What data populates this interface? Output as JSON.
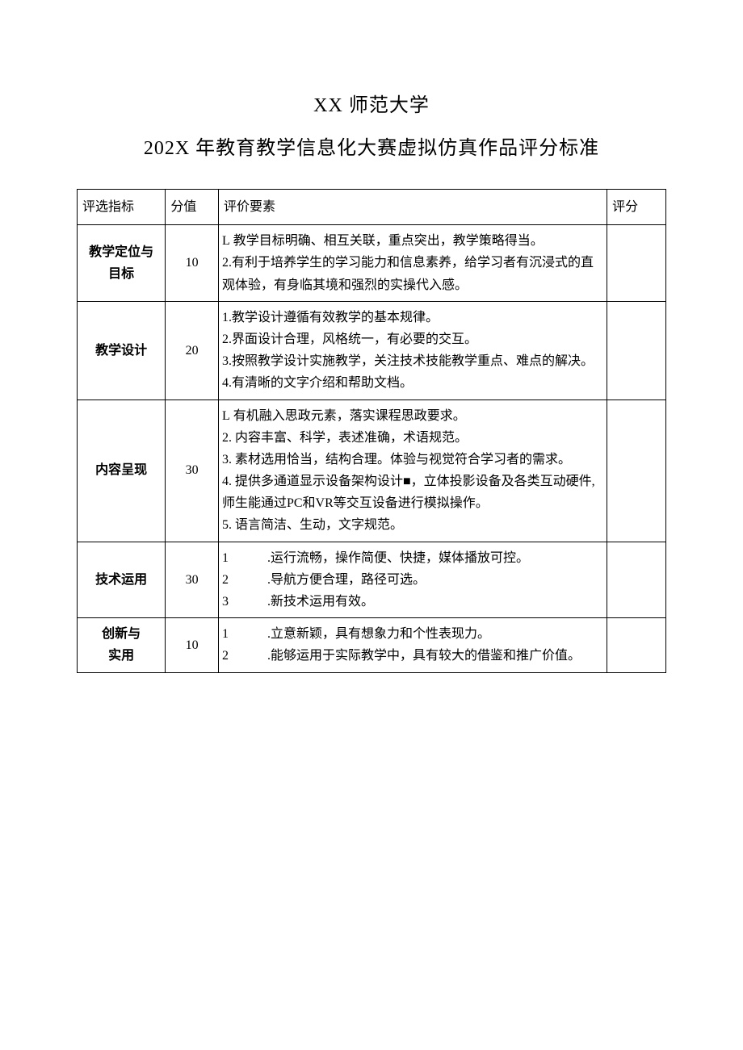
{
  "header": {
    "line1": "XX 师范大学",
    "line2": "202X 年教育教学信息化大赛虚拟仿真作品评分标准"
  },
  "table": {
    "columns": [
      "评选指标",
      "分值",
      "评价要素",
      "评分"
    ],
    "rows": [
      {
        "indicator": "教学定位与目标",
        "score": "10",
        "criteria_lines": [
          {
            "num": "L",
            "gap": false,
            "text": " 教学目标明确、相互关联，重点突出，教学策略得当。"
          },
          {
            "num": "2.",
            "gap": false,
            "text": "有利于培养学生的学习能力和信息素养，给学习者有沉浸式的直观体验，有身临其境和强烈的实操代入感。"
          }
        ],
        "rating": ""
      },
      {
        "indicator": "教学设计",
        "score": "20",
        "criteria_lines": [
          {
            "num": "1.",
            "gap": false,
            "text": "教学设计遵循有效教学的基本规律。"
          },
          {
            "num": "2.",
            "gap": false,
            "text": "界面设计合理，风格统一，有必要的交互。"
          },
          {
            "num": "3.",
            "gap": false,
            "text": "按照教学设计实施教学，关注技术技能教学重点、难点的解决。"
          },
          {
            "num": "4.",
            "gap": false,
            "text": "有清晰的文字介绍和帮助文档。"
          }
        ],
        "rating": ""
      },
      {
        "indicator": "内容呈现",
        "score": "30",
        "criteria_lines": [
          {
            "num": "L",
            "gap": false,
            "text": " 有机融入思政元素，落实课程思政要求。"
          },
          {
            "num": "2.",
            "gap": false,
            "text": " 内容丰富、科学，表述准确，术语规范。"
          },
          {
            "num": "3.",
            "gap": false,
            "text": " 素材选用恰当，结构合理。体验与视觉符合学习者的需求。"
          },
          {
            "num": "4.",
            "gap": false,
            "text": " 提供多通道显示设备架构设计■，立体投影设备及各类互动硬件,师生能通过PC和VR等交互设备进行模拟操作。"
          },
          {
            "num": "5.",
            "gap": false,
            "text": " 语言简洁、生动，文字规范。"
          }
        ],
        "rating": ""
      },
      {
        "indicator": "技术运用",
        "score": "30",
        "criteria_lines": [
          {
            "num": "1",
            "gap": true,
            "text": ".运行流畅，操作简便、快捷，媒体播放可控。"
          },
          {
            "num": "2",
            "gap": true,
            "text": ".导航方便合理，路径可选。"
          },
          {
            "num": "3",
            "gap": true,
            "text": ".新技术运用有效。"
          }
        ],
        "rating": ""
      },
      {
        "indicator": "创新与实用",
        "score": "10",
        "criteria_lines": [
          {
            "num": "1",
            "gap": true,
            "text": ".立意新颖，具有想象力和个性表现力。"
          },
          {
            "num": "2",
            "gap": true,
            "text": ".能够运用于实际教学中，具有较大的借鉴和推广价值。"
          }
        ],
        "rating": ""
      }
    ]
  }
}
